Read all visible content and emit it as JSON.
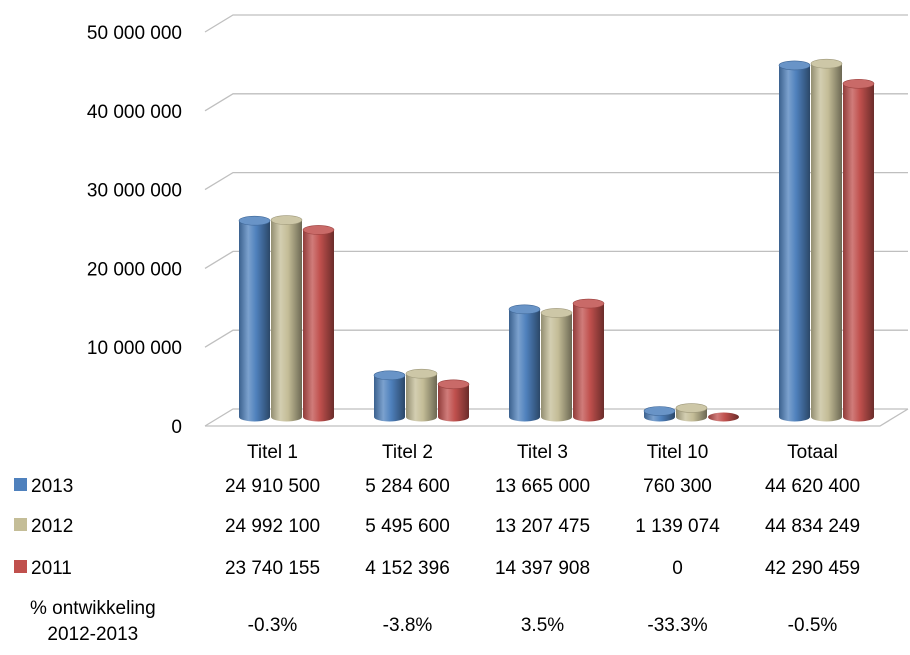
{
  "chart_data": {
    "type": "bar",
    "style": "3d-cylinder",
    "categories": [
      "Titel 1",
      "Titel 2",
      "Titel 3",
      "Titel 10",
      "Totaal"
    ],
    "series": [
      {
        "name": "2013",
        "color": "#4F81BD",
        "values": [
          24910500,
          5284600,
          13665000,
          760300,
          44620400
        ]
      },
      {
        "name": "2012",
        "color": "#C4BD97",
        "values": [
          24992100,
          5495600,
          13207475,
          1139074,
          44834249
        ]
      },
      {
        "name": "2011",
        "color": "#C0504D",
        "values": [
          23740155,
          4152396,
          14397908,
          0,
          42290459
        ]
      }
    ],
    "ylim": [
      0,
      50000000
    ],
    "yticks": [
      "0",
      "10 000 000",
      "20 000 000",
      "30 000 000",
      "40 000 000",
      "50 000 000"
    ],
    "grid": true,
    "legend": "data-table-left"
  },
  "table": {
    "rows": [
      {
        "label": "2013",
        "color": "#4F81BD",
        "cells": [
          "24 910 500",
          "5 284 600",
          "13 665 000",
          "760 300",
          "44 620 400"
        ]
      },
      {
        "label": "2012",
        "color": "#C4BD97",
        "cells": [
          "24 992 100",
          "5 495 600",
          "13 207 475",
          "1 139 074",
          "44 834 249"
        ]
      },
      {
        "label": "2011",
        "color": "#C0504D",
        "cells": [
          "23 740 155",
          "4 152 396",
          "14 397 908",
          "0",
          "42 290 459"
        ]
      }
    ],
    "pct_label_line1": "% ontwikkeling",
    "pct_label_line2": "2012-2013",
    "pct_cells": [
      "-0.3%",
      "-3.8%",
      "3.5%",
      "-33.3%",
      "-0.5%"
    ]
  }
}
